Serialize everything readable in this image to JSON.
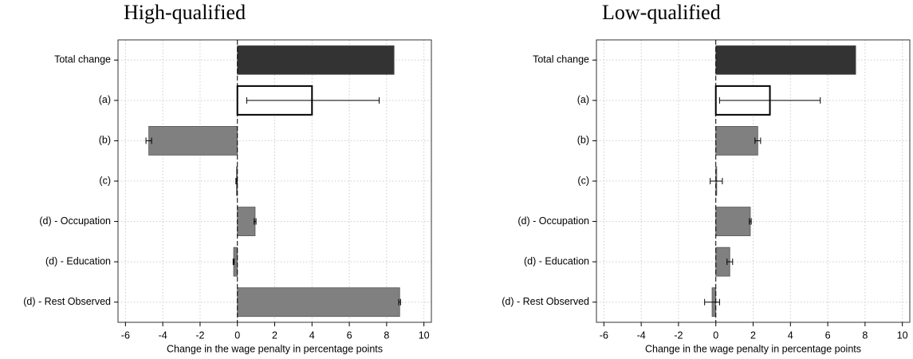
{
  "chart_data": [
    {
      "type": "bar",
      "orientation": "horizontal",
      "title": "High-qualified",
      "xlabel": "Change in the wage penalty in percentage points",
      "categories": [
        "Total change",
        "(a)",
        "(b)",
        "(c)",
        "(d) - Occupation",
        "(d) - Education",
        "(d) - Rest Observed"
      ],
      "values": [
        8.4,
        4.0,
        -4.75,
        -0.05,
        0.95,
        -0.2,
        8.7
      ],
      "ci_low": [
        null,
        0.5,
        -4.9,
        -0.08,
        0.9,
        -0.23,
        8.65
      ],
      "ci_high": [
        null,
        7.6,
        -4.6,
        -0.02,
        1.0,
        -0.17,
        8.75
      ],
      "colors": [
        "#333333",
        "#ffffff",
        "#808080",
        "#808080",
        "#808080",
        "#808080",
        "#808080"
      ],
      "xlim": [
        -6.4,
        10.4
      ],
      "xticks": [
        -6,
        -4,
        -2,
        0,
        2,
        4,
        6,
        8,
        10
      ],
      "grid": true
    },
    {
      "type": "bar",
      "orientation": "horizontal",
      "title": "Low-qualified",
      "xlabel": "Change in the wage penalty in percentage points",
      "categories": [
        "Total change",
        "(a)",
        "(b)",
        "(c)",
        "(d) - Occupation",
        "(d) - Education",
        "(d) - Rest Observed"
      ],
      "values": [
        7.5,
        2.9,
        2.25,
        0.05,
        1.85,
        0.75,
        -0.2
      ],
      "ci_low": [
        null,
        0.2,
        2.1,
        -0.3,
        1.8,
        0.6,
        -0.6
      ],
      "ci_high": [
        null,
        5.6,
        2.4,
        0.35,
        1.9,
        0.9,
        0.2
      ],
      "colors": [
        "#333333",
        "#ffffff",
        "#808080",
        "#808080",
        "#808080",
        "#808080",
        "#808080"
      ],
      "xlim": [
        -6.4,
        10.4
      ],
      "xticks": [
        -6,
        -4,
        -2,
        0,
        2,
        4,
        6,
        8,
        10
      ],
      "grid": true
    }
  ]
}
